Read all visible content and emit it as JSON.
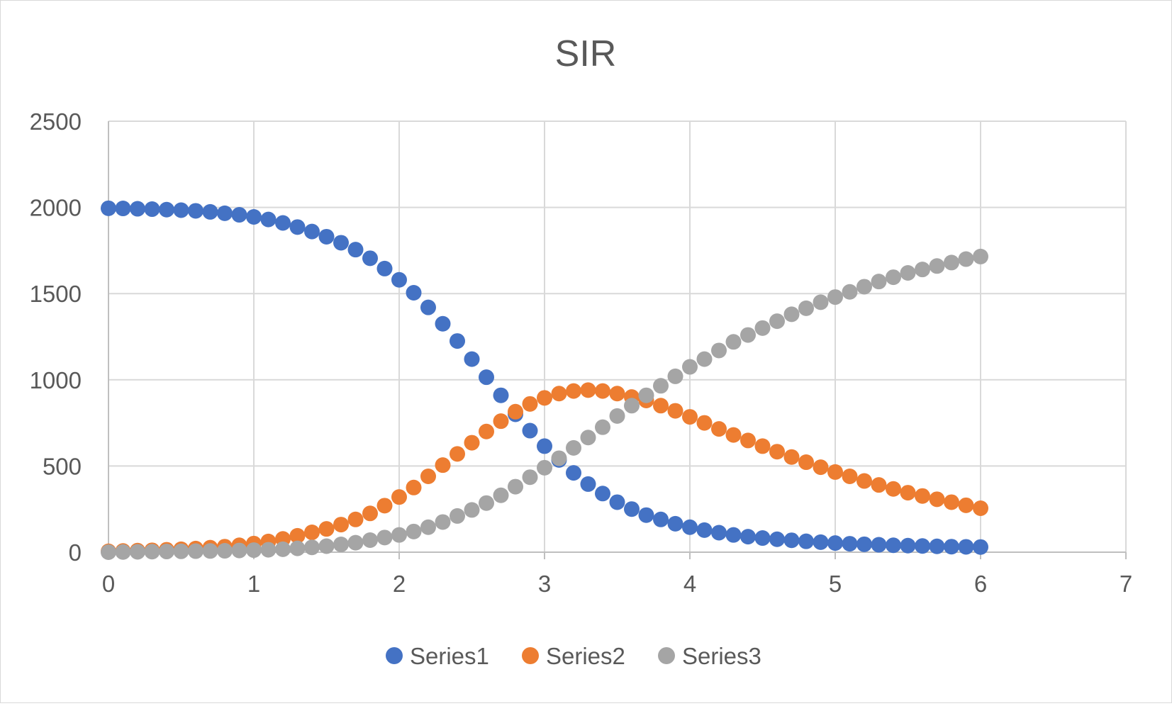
{
  "chart_data": {
    "type": "scatter",
    "title": "SIR",
    "xlabel": "",
    "ylabel": "",
    "xlim": [
      0,
      7
    ],
    "ylim": [
      0,
      2500
    ],
    "xticks": [
      "0",
      "1",
      "2",
      "3",
      "4",
      "5",
      "6",
      "7"
    ],
    "yticks": [
      "0",
      "500",
      "1000",
      "1500",
      "2000",
      "2500"
    ],
    "grid": true,
    "legend_position": "bottom",
    "x": [
      0,
      0.1,
      0.2,
      0.3,
      0.4,
      0.5,
      0.6,
      0.7,
      0.8,
      0.9,
      1.0,
      1.1,
      1.2,
      1.3,
      1.4,
      1.5,
      1.6,
      1.7,
      1.8,
      1.9,
      2.0,
      2.1,
      2.2,
      2.3,
      2.4,
      2.5,
      2.6,
      2.7,
      2.8,
      2.9,
      3.0,
      3.1,
      3.2,
      3.3,
      3.4,
      3.5,
      3.6,
      3.7,
      3.8,
      3.9,
      4.0,
      4.1,
      4.2,
      4.3,
      4.4,
      4.5,
      4.6,
      4.7,
      4.8,
      4.9,
      5.0,
      5.1,
      5.2,
      5.3,
      5.4,
      5.5,
      5.6,
      5.7,
      5.8,
      5.9,
      6.0
    ],
    "series": [
      {
        "name": "Series1",
        "color": "#4472c4",
        "values": [
          1995,
          1994,
          1992,
          1990,
          1987,
          1984,
          1980,
          1974,
          1966,
          1957,
          1945,
          1930,
          1910,
          1886,
          1860,
          1830,
          1795,
          1755,
          1705,
          1645,
          1580,
          1505,
          1420,
          1325,
          1225,
          1120,
          1015,
          910,
          800,
          705,
          615,
          535,
          460,
          395,
          340,
          290,
          250,
          215,
          190,
          165,
          145,
          128,
          113,
          100,
          90,
          82,
          75,
          69,
          63,
          58,
          53,
          49,
          46,
          43,
          40,
          38,
          36,
          34,
          32,
          31,
          30
        ]
      },
      {
        "name": "Series2",
        "color": "#ed7d31",
        "values": [
          5,
          7,
          9,
          11,
          14,
          17,
          21,
          26,
          32,
          40,
          50,
          62,
          77,
          95,
          115,
          135,
          160,
          190,
          225,
          270,
          320,
          375,
          440,
          505,
          570,
          635,
          700,
          760,
          815,
          860,
          895,
          920,
          935,
          940,
          935,
          920,
          900,
          880,
          850,
          820,
          785,
          750,
          715,
          680,
          648,
          615,
          583,
          552,
          522,
          493,
          465,
          440,
          413,
          390,
          367,
          345,
          326,
          307,
          290,
          272,
          255
        ]
      },
      {
        "name": "Series3",
        "color": "#a5a5a5",
        "values": [
          0,
          1,
          2,
          3,
          4,
          5,
          6,
          7,
          8,
          10,
          12,
          14,
          17,
          22,
          28,
          35,
          45,
          55,
          70,
          85,
          100,
          120,
          145,
          175,
          210,
          245,
          285,
          330,
          380,
          435,
          490,
          545,
          605,
          665,
          725,
          790,
          850,
          910,
          965,
          1020,
          1075,
          1120,
          1170,
          1220,
          1260,
          1300,
          1340,
          1380,
          1415,
          1450,
          1480,
          1510,
          1540,
          1570,
          1595,
          1620,
          1640,
          1660,
          1680,
          1700,
          1715
        ]
      }
    ]
  }
}
